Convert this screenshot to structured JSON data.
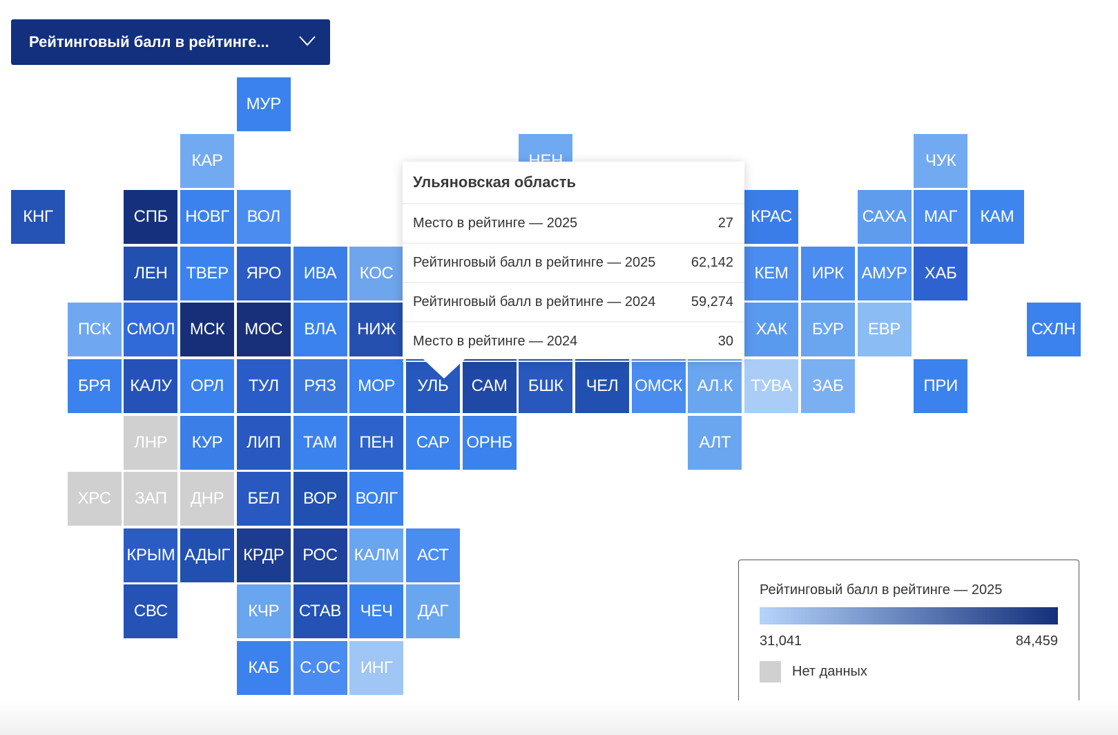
{
  "dropdown": {
    "label": "Рейтинговый балл в рейтинге...",
    "icon": "chevron-down-icon"
  },
  "colors": {
    "no_data": "#d0d0d0",
    "gradient_start": "#b6d4fb",
    "gradient_end": "#132f7a",
    "dropdown_bg": "#13307e"
  },
  "tiles": [
    {
      "label": "МУР",
      "color": "#3b82ee"
    },
    {
      "label": "КАР",
      "color": "#72aaf1"
    },
    {
      "label": "НЕН",
      "color": "#6ea9f2"
    },
    {
      "label": "ЧУК",
      "color": "#72aaf1"
    },
    {
      "label": "КНГ",
      "color": "#2452b5"
    },
    {
      "label": "СПБ",
      "color": "#15317d"
    },
    {
      "label": "НОВГ",
      "color": "#3b82ee"
    },
    {
      "label": "ВОЛ",
      "color": "#4a8cf0"
    },
    {
      "label": "КРАС",
      "color": "#3a7de8"
    },
    {
      "label": "САХА",
      "color": "#5f9cee"
    },
    {
      "label": "МАГ",
      "color": "#4a8cf0"
    },
    {
      "label": "КАМ",
      "color": "#3f85ee"
    },
    {
      "label": "ЛЕН",
      "color": "#2250b0"
    },
    {
      "label": "ТВЕР",
      "color": "#3b82ee"
    },
    {
      "label": "ЯРО",
      "color": "#2a5cc4"
    },
    {
      "label": "ИВА",
      "color": "#3b7ee8"
    },
    {
      "label": "КОС",
      "color": "#6ea5ec"
    },
    {
      "label": "КЕМ",
      "color": "#4a8cf0"
    },
    {
      "label": "ИРК",
      "color": "#4a8cf0"
    },
    {
      "label": "АМУР",
      "color": "#4f92f0"
    },
    {
      "label": "ХАБ",
      "color": "#2d62d0"
    },
    {
      "label": "ПСК",
      "color": "#6fa8f0"
    },
    {
      "label": "СМОЛ",
      "color": "#2f6ad8"
    },
    {
      "label": "МСК",
      "color": "#172f78"
    },
    {
      "label": "МОС",
      "color": "#18307a"
    },
    {
      "label": "ВЛА",
      "color": "#3b82ee"
    },
    {
      "label": "НИЖ",
      "color": "#2550b0"
    },
    {
      "label": "ХАК",
      "color": "#5a9aee"
    },
    {
      "label": "БУР",
      "color": "#6aa5f0"
    },
    {
      "label": "ЕВР",
      "color": "#8cbcf4"
    },
    {
      "label": "СХЛН",
      "color": "#3b82ee"
    },
    {
      "label": "БРЯ",
      "color": "#3b82ee"
    },
    {
      "label": "КАЛУ",
      "color": "#2452b8"
    },
    {
      "label": "ОРЛ",
      "color": "#3b82ee"
    },
    {
      "label": "ТУЛ",
      "color": "#2a5cc8"
    },
    {
      "label": "РЯЗ",
      "color": "#3a78e0"
    },
    {
      "label": "МОР",
      "color": "#3b82ee"
    },
    {
      "label": "УЛЬ",
      "color": "#2658bd"
    },
    {
      "label": "САМ",
      "color": "#2048a6"
    },
    {
      "label": "БШК",
      "color": "#2858be"
    },
    {
      "label": "ЧЕЛ",
      "color": "#2250b0"
    },
    {
      "label": "ОМСК",
      "color": "#4a8cf0"
    },
    {
      "label": "АЛ.К",
      "color": "#6aa5ef"
    },
    {
      "label": "ТУВА",
      "color": "#aacdf7"
    },
    {
      "label": "ЗАБ",
      "color": "#7ab0f2"
    },
    {
      "label": "ПРИ",
      "color": "#3b82ee"
    },
    {
      "label": "ЛНР",
      "color": "#d0d0d0"
    },
    {
      "label": "КУР",
      "color": "#3b7ee8"
    },
    {
      "label": "ЛИП",
      "color": "#2858c0"
    },
    {
      "label": "ТАМ",
      "color": "#3b82ee"
    },
    {
      "label": "ПЕН",
      "color": "#2d62cc"
    },
    {
      "label": "САР",
      "color": "#3b82ee"
    },
    {
      "label": "ОРНБ",
      "color": "#3b82ee"
    },
    {
      "label": "АЛТ",
      "color": "#6aa5ef"
    },
    {
      "label": "ХРС",
      "color": "#d0d0d0"
    },
    {
      "label": "ЗАП",
      "color": "#d0d0d0"
    },
    {
      "label": "ДНР",
      "color": "#d0d0d0"
    },
    {
      "label": "БЕЛ",
      "color": "#2858c0"
    },
    {
      "label": "ВОР",
      "color": "#2250b0"
    },
    {
      "label": "ВОЛГ",
      "color": "#3b82ee"
    },
    {
      "label": "КРЫМ",
      "color": "#2a5cc4"
    },
    {
      "label": "АДЫГ",
      "color": "#2250b0"
    },
    {
      "label": "КРДР",
      "color": "#1c3c8f"
    },
    {
      "label": "РОС",
      "color": "#1f4199"
    },
    {
      "label": "КАЛМ",
      "color": "#6aa5ef"
    },
    {
      "label": "АСТ",
      "color": "#4a8cf0"
    },
    {
      "label": "СВС",
      "color": "#2452b5"
    },
    {
      "label": "КЧР",
      "color": "#6aa5ef"
    },
    {
      "label": "СТАВ",
      "color": "#2452b5"
    },
    {
      "label": "ЧЕЧ",
      "color": "#3b82ee"
    },
    {
      "label": "ДАГ",
      "color": "#6aa5ef"
    },
    {
      "label": "КАБ",
      "color": "#3b82ee"
    },
    {
      "label": "С.ОС",
      "color": "#4a8cf0"
    },
    {
      "label": "ИНГ",
      "color": "#9fc6f5"
    }
  ],
  "tooltip": {
    "title": "Ульяновская область",
    "rows": [
      {
        "label": "Место в рейтинге — 2025",
        "value": "27"
      },
      {
        "label": "Рейтинговый балл в рейтинге — 2025",
        "value": "62,142"
      },
      {
        "label": "Рейтинговый балл в рейтинге — 2024",
        "value": "59,274"
      },
      {
        "label": "Место в рейтинге — 2024",
        "value": "30"
      }
    ]
  },
  "legend": {
    "title": "Рейтинговый балл в рейтинге — 2025",
    "min": "31,041",
    "max": "84,459",
    "no_data": "Нет данных"
  }
}
